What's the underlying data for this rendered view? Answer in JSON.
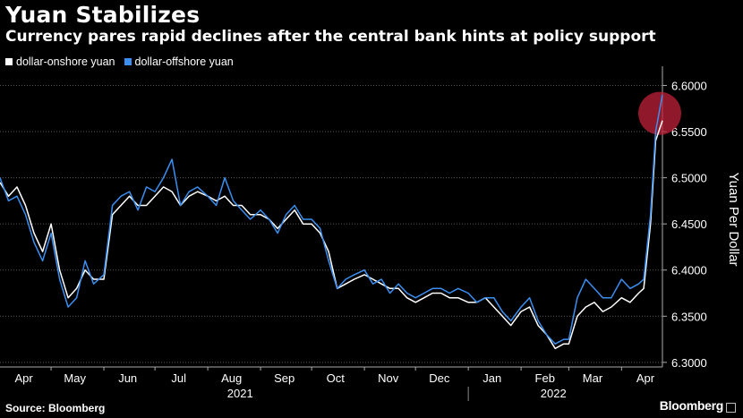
{
  "title": "Yuan Stabilizes",
  "subtitle": "Currency pares rapid declines after the central bank hints at policy support",
  "legend": [
    {
      "label": "dollar-onshore yuan",
      "color": "#ffffff"
    },
    {
      "label": "dollar-offshore yuan",
      "color": "#3b8ff0"
    }
  ],
  "source": "Source: Bloomberg",
  "brand": "Bloomberg",
  "chart_data": {
    "type": "line",
    "ylabel": "Yuan Per Dollar",
    "ylim": [
      6.295,
      6.615
    ],
    "yticks": [
      {
        "value": 6.6,
        "label": "6.6000"
      },
      {
        "value": 6.55,
        "label": "6.5500"
      },
      {
        "value": 6.5,
        "label": "6.5000"
      },
      {
        "value": 6.45,
        "label": "6.4500"
      },
      {
        "value": 6.4,
        "label": "6.4000"
      },
      {
        "value": 6.35,
        "label": "6.3500"
      },
      {
        "value": 6.3,
        "label": "6.3000"
      }
    ],
    "grid": true,
    "legend_position": "top-left",
    "x_range": [
      "2021-04-01",
      "2022-04-25"
    ],
    "x_month_ticks": [
      {
        "label": "Apr",
        "date": "2021-04-15"
      },
      {
        "label": "May",
        "date": "2021-05-15"
      },
      {
        "label": "Jun",
        "date": "2021-06-15"
      },
      {
        "label": "Jul",
        "date": "2021-07-15"
      },
      {
        "label": "Aug",
        "date": "2021-08-15"
      },
      {
        "label": "Sep",
        "date": "2021-09-15"
      },
      {
        "label": "Oct",
        "date": "2021-10-15"
      },
      {
        "label": "Nov",
        "date": "2021-11-15"
      },
      {
        "label": "Dec",
        "date": "2021-12-15"
      },
      {
        "label": "Jan",
        "date": "2022-01-15"
      },
      {
        "label": "Feb",
        "date": "2022-02-15"
      },
      {
        "label": "Mar",
        "date": "2022-03-15"
      },
      {
        "label": "Apr",
        "date": "2022-04-15"
      }
    ],
    "x_year_ticks": [
      {
        "label": "2021",
        "date": "2021-08-20"
      },
      {
        "label": "2022",
        "date": "2022-02-20"
      }
    ],
    "x_year_divider": "2022-01-01",
    "highlight": {
      "date": "2022-04-25",
      "value": 6.562,
      "color": "#c0203a"
    },
    "series": [
      {
        "name": "dollar-onshore yuan",
        "color": "#ffffff",
        "x": [
          "2021-04-01",
          "2021-04-06",
          "2021-04-11",
          "2021-04-16",
          "2021-04-21",
          "2021-04-26",
          "2021-05-01",
          "2021-05-06",
          "2021-05-11",
          "2021-05-16",
          "2021-05-21",
          "2021-05-26",
          "2021-06-01",
          "2021-06-06",
          "2021-06-11",
          "2021-06-16",
          "2021-06-21",
          "2021-06-26",
          "2021-07-01",
          "2021-07-06",
          "2021-07-11",
          "2021-07-16",
          "2021-07-21",
          "2021-07-26",
          "2021-08-01",
          "2021-08-06",
          "2021-08-11",
          "2021-08-16",
          "2021-08-21",
          "2021-08-26",
          "2021-09-01",
          "2021-09-06",
          "2021-09-11",
          "2021-09-16",
          "2021-09-21",
          "2021-09-26",
          "2021-10-01",
          "2021-10-06",
          "2021-10-11",
          "2021-10-16",
          "2021-10-21",
          "2021-10-26",
          "2021-11-01",
          "2021-11-06",
          "2021-11-11",
          "2021-11-16",
          "2021-11-21",
          "2021-11-26",
          "2021-12-01",
          "2021-12-06",
          "2021-12-11",
          "2021-12-16",
          "2021-12-21",
          "2021-12-26",
          "2022-01-01",
          "2022-01-06",
          "2022-01-11",
          "2022-01-16",
          "2022-01-21",
          "2022-01-26",
          "2022-02-01",
          "2022-02-06",
          "2022-02-11",
          "2022-02-16",
          "2022-02-21",
          "2022-02-26",
          "2022-03-01",
          "2022-03-06",
          "2022-03-11",
          "2022-03-16",
          "2022-03-21",
          "2022-03-26",
          "2022-04-01",
          "2022-04-06",
          "2022-04-11",
          "2022-04-14",
          "2022-04-18",
          "2022-04-21",
          "2022-04-25"
        ],
        "values": [
          6.495,
          6.48,
          6.49,
          6.47,
          6.44,
          6.42,
          6.45,
          6.4,
          6.37,
          6.38,
          6.4,
          6.39,
          6.39,
          6.46,
          6.47,
          6.48,
          6.47,
          6.47,
          6.48,
          6.49,
          6.485,
          6.47,
          6.48,
          6.485,
          6.48,
          6.475,
          6.48,
          6.47,
          6.47,
          6.46,
          6.46,
          6.455,
          6.445,
          6.455,
          6.465,
          6.45,
          6.45,
          6.44,
          6.42,
          6.38,
          6.385,
          6.39,
          6.395,
          6.39,
          6.385,
          6.38,
          6.38,
          6.37,
          6.365,
          6.37,
          6.375,
          6.375,
          6.37,
          6.37,
          6.365,
          6.365,
          6.37,
          6.36,
          6.35,
          6.34,
          6.355,
          6.36,
          6.34,
          6.33,
          6.315,
          6.32,
          6.32,
          6.35,
          6.36,
          6.365,
          6.355,
          6.36,
          6.37,
          6.365,
          6.375,
          6.38,
          6.45,
          6.54,
          6.562
        ]
      },
      {
        "name": "dollar-offshore yuan",
        "color": "#3b8ff0",
        "x": [
          "2021-04-01",
          "2021-04-06",
          "2021-04-11",
          "2021-04-16",
          "2021-04-21",
          "2021-04-26",
          "2021-05-01",
          "2021-05-06",
          "2021-05-11",
          "2021-05-16",
          "2021-05-21",
          "2021-05-26",
          "2021-06-01",
          "2021-06-06",
          "2021-06-11",
          "2021-06-16",
          "2021-06-21",
          "2021-06-26",
          "2021-07-01",
          "2021-07-06",
          "2021-07-11",
          "2021-07-16",
          "2021-07-21",
          "2021-07-26",
          "2021-08-01",
          "2021-08-06",
          "2021-08-11",
          "2021-08-16",
          "2021-08-21",
          "2021-08-26",
          "2021-09-01",
          "2021-09-06",
          "2021-09-11",
          "2021-09-16",
          "2021-09-21",
          "2021-09-26",
          "2021-10-01",
          "2021-10-06",
          "2021-10-11",
          "2021-10-16",
          "2021-10-21",
          "2021-10-26",
          "2021-11-01",
          "2021-11-06",
          "2021-11-11",
          "2021-11-16",
          "2021-11-21",
          "2021-11-26",
          "2021-12-01",
          "2021-12-06",
          "2021-12-11",
          "2021-12-16",
          "2021-12-21",
          "2021-12-26",
          "2022-01-01",
          "2022-01-06",
          "2022-01-11",
          "2022-01-16",
          "2022-01-21",
          "2022-01-26",
          "2022-02-01",
          "2022-02-06",
          "2022-02-11",
          "2022-02-16",
          "2022-02-21",
          "2022-02-26",
          "2022-03-01",
          "2022-03-06",
          "2022-03-11",
          "2022-03-16",
          "2022-03-21",
          "2022-03-26",
          "2022-04-01",
          "2022-04-06",
          "2022-04-11",
          "2022-04-14",
          "2022-04-18",
          "2022-04-21",
          "2022-04-25"
        ],
        "values": [
          6.5,
          6.475,
          6.48,
          6.46,
          6.43,
          6.41,
          6.44,
          6.39,
          6.36,
          6.37,
          6.41,
          6.385,
          6.395,
          6.47,
          6.48,
          6.485,
          6.465,
          6.49,
          6.485,
          6.5,
          6.52,
          6.47,
          6.485,
          6.49,
          6.48,
          6.47,
          6.5,
          6.475,
          6.465,
          6.455,
          6.465,
          6.455,
          6.44,
          6.46,
          6.47,
          6.455,
          6.455,
          6.445,
          6.41,
          6.38,
          6.39,
          6.395,
          6.4,
          6.385,
          6.39,
          6.375,
          6.385,
          6.375,
          6.37,
          6.375,
          6.38,
          6.38,
          6.375,
          6.38,
          6.375,
          6.365,
          6.37,
          6.37,
          6.355,
          6.345,
          6.36,
          6.37,
          6.345,
          6.33,
          6.32,
          6.325,
          6.325,
          6.37,
          6.39,
          6.38,
          6.37,
          6.37,
          6.39,
          6.38,
          6.385,
          6.39,
          6.46,
          6.55,
          6.59
        ]
      }
    ]
  }
}
